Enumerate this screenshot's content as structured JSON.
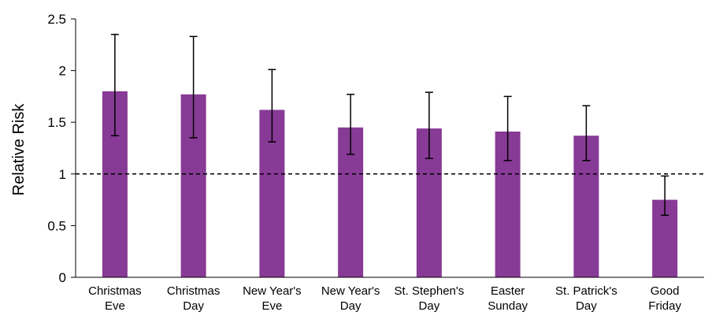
{
  "chart_data": {
    "type": "bar",
    "categories": [
      [
        "Christmas",
        "Eve"
      ],
      [
        "Christmas",
        "Day"
      ],
      [
        "New Year's",
        "Eve"
      ],
      [
        "New Year's",
        "Day"
      ],
      [
        "St. Stephen's",
        "Day"
      ],
      [
        "Easter",
        "Sunday"
      ],
      [
        "St. Patrick's",
        "Day"
      ],
      [
        "Good",
        "Friday"
      ]
    ],
    "series": [
      {
        "values": [
          1.8,
          1.77,
          1.62,
          1.45,
          1.44,
          1.41,
          1.37,
          0.75
        ],
        "error_low": [
          1.37,
          1.35,
          1.31,
          1.19,
          1.15,
          1.13,
          1.13,
          0.6
        ],
        "error_high": [
          2.35,
          2.33,
          2.01,
          1.77,
          1.79,
          1.75,
          1.66,
          0.98
        ]
      }
    ],
    "ylabel": "Relative Risk",
    "xlabel": "",
    "ylim": [
      0,
      2.5
    ],
    "yticks": [
      "0",
      "0.5",
      "1",
      "1.5",
      "2",
      "2.5"
    ],
    "reference_line": {
      "y": 1,
      "style": "dashed"
    },
    "bar_color": "#873a96",
    "grid": false,
    "legend": "none"
  }
}
